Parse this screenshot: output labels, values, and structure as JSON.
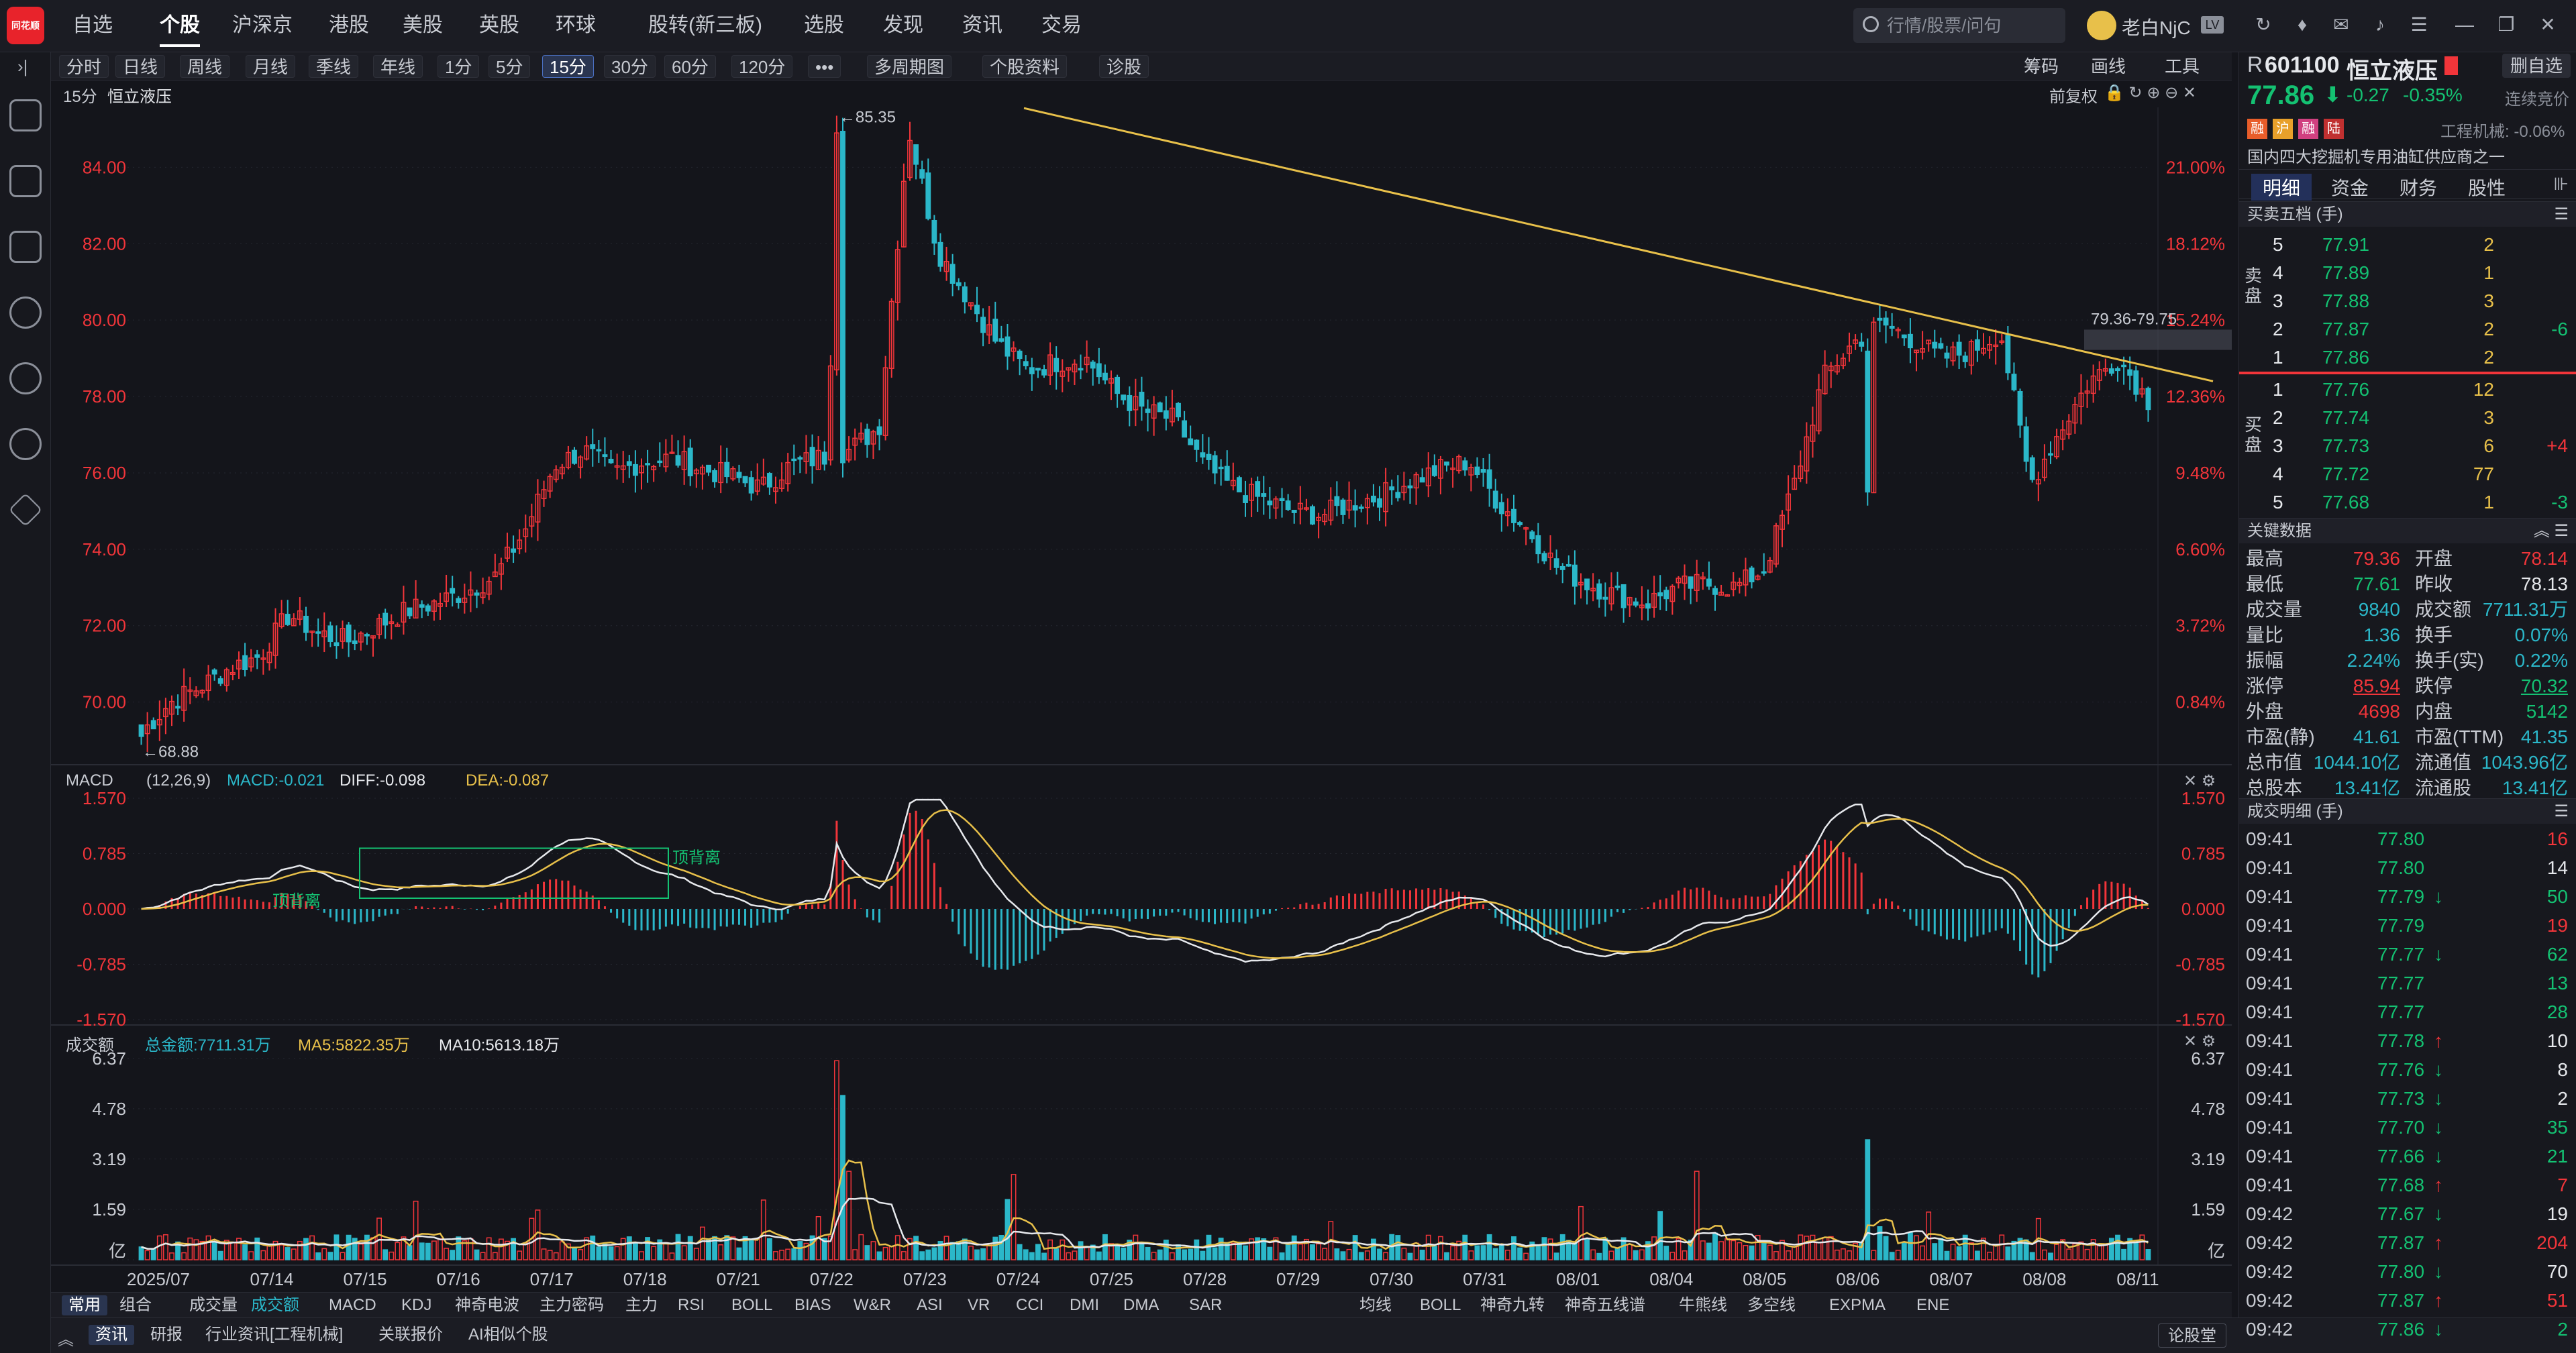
{
  "topbar": {
    "logo": "同花顺",
    "nav": [
      {
        "label": "自选"
      },
      {
        "label": "个股"
      },
      {
        "label": "沪深京"
      },
      {
        "label": "港股"
      },
      {
        "label": "美股"
      },
      {
        "label": "英股"
      },
      {
        "label": "环球"
      },
      {
        "label": "股转(新三板)"
      },
      {
        "label": "选股"
      },
      {
        "label": "发现"
      },
      {
        "label": "资讯"
      },
      {
        "label": "交易"
      }
    ],
    "search_placeholder": "行情/股票/问句",
    "user": "老白NjC"
  },
  "toolbar": {
    "periods": [
      {
        "label": "分时"
      },
      {
        "label": "日线"
      },
      {
        "label": "周线"
      },
      {
        "label": "月线"
      },
      {
        "label": "季线"
      },
      {
        "label": "年线"
      },
      {
        "label": "1分"
      },
      {
        "label": "5分"
      },
      {
        "label": "15分"
      },
      {
        "label": "30分"
      },
      {
        "label": "60分"
      },
      {
        "label": "120分"
      },
      {
        "label": "•••"
      },
      {
        "label": "多周期图"
      },
      {
        "label": "个股资料"
      },
      {
        "label": "诊股"
      }
    ],
    "right": [
      {
        "label": "筹码"
      },
      {
        "label": "画线"
      },
      {
        "label": "工具"
      }
    ]
  },
  "chart_header": {
    "period": "15分",
    "name": "恒立液压",
    "fq": "前复权"
  },
  "price_pane": {
    "y_ticks": [
      "84.00",
      "82.00",
      "80.00",
      "78.00",
      "76.00",
      "74.00",
      "72.00",
      "70.00"
    ],
    "pct_ticks": [
      "21.00%",
      "18.12%",
      "15.24%",
      "12.36%",
      "9.48%",
      "6.60%",
      "3.72%",
      "0.84%"
    ],
    "high_label": "←85.35",
    "low_label": "←68.88",
    "range_label": "79.36-79.75"
  },
  "macd_pane": {
    "title": "MACD",
    "params": "(12,26,9)",
    "macd": "MACD:-0.021",
    "diff": "DIFF:-0.098",
    "dea": "DEA:-0.087",
    "y_ticks": [
      "1.570",
      "0.785",
      "0.000",
      "-0.785",
      "-1.570"
    ],
    "annotations": [
      "顶背离",
      "顶背离"
    ]
  },
  "vol_pane": {
    "title": "成交额",
    "total": "总金额:7711.31万",
    "ma5": "MA5:5822.35万",
    "ma10": "MA10:5613.18万",
    "y_ticks": [
      "6.37",
      "4.78",
      "3.19",
      "1.59",
      "亿"
    ]
  },
  "x_axis": [
    "2025/07",
    "07/14",
    "07/15",
    "07/16",
    "07/17",
    "07/18",
    "07/21",
    "07/22",
    "07/23",
    "07/24",
    "07/25",
    "07/28",
    "07/29",
    "07/30",
    "07/31",
    "08/01",
    "08/04",
    "08/05",
    "08/06",
    "08/07",
    "08/08",
    "08/11"
  ],
  "bottom_tabs": {
    "left": [
      {
        "label": "常用"
      },
      {
        "label": "组合"
      },
      {
        "label": "成交量"
      },
      {
        "label": "成交额"
      },
      {
        "label": "MACD"
      },
      {
        "label": "KDJ"
      },
      {
        "label": "神奇电波"
      },
      {
        "label": "主力密码"
      },
      {
        "label": "主力"
      },
      {
        "label": "RSI"
      },
      {
        "label": "BOLL"
      },
      {
        "label": "BIAS"
      },
      {
        "label": "W&R"
      },
      {
        "label": "ASI"
      },
      {
        "label": "VR"
      },
      {
        "label": "CCI"
      },
      {
        "label": "DMI"
      },
      {
        "label": "DMA"
      },
      {
        "label": "SAR"
      }
    ],
    "right": [
      {
        "label": "均线"
      },
      {
        "label": "BOLL"
      },
      {
        "label": "神奇九转"
      },
      {
        "label": "神奇五线谱"
      },
      {
        "label": "牛熊线"
      },
      {
        "label": "多空线"
      },
      {
        "label": "EXPMA"
      },
      {
        "label": "ENE"
      }
    ]
  },
  "newsbar": [
    {
      "label": "资讯"
    },
    {
      "label": "研报"
    },
    {
      "label": "行业资讯[工程机械]"
    },
    {
      "label": "关联报价"
    },
    {
      "label": "AI相似个股"
    }
  ],
  "newsbar_right": "论股堂",
  "stock": {
    "prefix": "R",
    "code": "601100",
    "name": "恒立液压",
    "add_btn": "删自选",
    "price": "77.86",
    "change": "-0.27",
    "change_pct": "-0.35%",
    "status": "连续竞价",
    "tags": [
      "融",
      "沪",
      "融",
      "陆"
    ],
    "sector": "工程机械: -0.06%",
    "desc": "国内四大挖掘机专用油缸供应商之一",
    "tabs": [
      {
        "label": "明细"
      },
      {
        "label": "资金"
      },
      {
        "label": "财务"
      },
      {
        "label": "股性"
      }
    ]
  },
  "order_book": {
    "title": "买卖五档 (手)",
    "sell_label": "卖盘",
    "buy_label": "买盘",
    "sell": [
      {
        "lvl": "5",
        "price": "77.91",
        "vol": "2",
        "chg": ""
      },
      {
        "lvl": "4",
        "price": "77.89",
        "vol": "1",
        "chg": ""
      },
      {
        "lvl": "3",
        "price": "77.88",
        "vol": "3",
        "chg": ""
      },
      {
        "lvl": "2",
        "price": "77.87",
        "vol": "2",
        "chg": "-6"
      },
      {
        "lvl": "1",
        "price": "77.86",
        "vol": "2",
        "chg": ""
      }
    ],
    "buy": [
      {
        "lvl": "1",
        "price": "77.76",
        "vol": "12",
        "chg": ""
      },
      {
        "lvl": "2",
        "price": "77.74",
        "vol": "3",
        "chg": ""
      },
      {
        "lvl": "3",
        "price": "77.73",
        "vol": "6",
        "chg": "+4"
      },
      {
        "lvl": "4",
        "price": "77.72",
        "vol": "77",
        "chg": ""
      },
      {
        "lvl": "5",
        "price": "77.68",
        "vol": "1",
        "chg": "-3"
      }
    ]
  },
  "key_data": {
    "title": "关键数据",
    "rows": [
      {
        "l1": "最高",
        "v1": "79.36",
        "c1": "red",
        "l2": "开盘",
        "v2": "78.14",
        "c2": "red"
      },
      {
        "l1": "最低",
        "v1": "77.61",
        "c1": "green",
        "l2": "昨收",
        "v2": "78.13",
        "c2": "white"
      },
      {
        "l1": "成交量",
        "v1": "9840",
        "c1": "cyan",
        "l2": "成交额",
        "v2": "7711.31万",
        "c2": "cyan"
      },
      {
        "l1": "量比",
        "v1": "1.36",
        "c1": "cyan",
        "l2": "换手",
        "v2": "0.07%",
        "c2": "cyan"
      },
      {
        "l1": "振幅",
        "v1": "2.24%",
        "c1": "cyan",
        "l2": "换手(实)",
        "v2": "0.22%",
        "c2": "cyan"
      },
      {
        "l1": "涨停",
        "v1": "85.94",
        "c1": "red",
        "l2": "跌停",
        "v2": "70.32",
        "c2": "green"
      },
      {
        "l1": "外盘",
        "v1": "4698",
        "c1": "red",
        "l2": "内盘",
        "v2": "5142",
        "c2": "green"
      },
      {
        "l1": "市盈(静)",
        "v1": "41.61",
        "c1": "cyan",
        "l2": "市盈(TTM)",
        "v2": "41.35",
        "c2": "cyan"
      },
      {
        "l1": "总市值",
        "v1": "1044.10亿",
        "c1": "cyan",
        "l2": "流通值",
        "v2": "1043.96亿",
        "c2": "cyan"
      },
      {
        "l1": "总股本",
        "v1": "13.41亿",
        "c1": "cyan",
        "l2": "流通股",
        "v2": "13.41亿",
        "c2": "cyan"
      }
    ]
  },
  "trades": {
    "title": "成交明细 (手)",
    "rows": [
      {
        "t": "09:41",
        "p": "77.80",
        "d": "",
        "v": "16",
        "c": "red"
      },
      {
        "t": "09:41",
        "p": "77.80",
        "d": "",
        "v": "14",
        "c": "white"
      },
      {
        "t": "09:41",
        "p": "77.79",
        "d": "↓",
        "v": "50",
        "c": "green"
      },
      {
        "t": "09:41",
        "p": "77.79",
        "d": "",
        "v": "19",
        "c": "red"
      },
      {
        "t": "09:41",
        "p": "77.77",
        "d": "↓",
        "v": "62",
        "c": "green"
      },
      {
        "t": "09:41",
        "p": "77.77",
        "d": "",
        "v": "13",
        "c": "green"
      },
      {
        "t": "09:41",
        "p": "77.77",
        "d": "",
        "v": "28",
        "c": "green"
      },
      {
        "t": "09:41",
        "p": "77.78",
        "d": "↑",
        "v": "10",
        "c": "white"
      },
      {
        "t": "09:41",
        "p": "77.76",
        "d": "↓",
        "v": "8",
        "c": "white"
      },
      {
        "t": "09:41",
        "p": "77.73",
        "d": "↓",
        "v": "2",
        "c": "white"
      },
      {
        "t": "09:41",
        "p": "77.70",
        "d": "↓",
        "v": "35",
        "c": "green"
      },
      {
        "t": "09:41",
        "p": "77.66",
        "d": "↓",
        "v": "21",
        "c": "green"
      },
      {
        "t": "09:41",
        "p": "77.68",
        "d": "↑",
        "v": "7",
        "c": "red"
      },
      {
        "t": "09:42",
        "p": "77.67",
        "d": "↓",
        "v": "19",
        "c": "white"
      },
      {
        "t": "09:42",
        "p": "77.87",
        "d": "↑",
        "v": "204",
        "c": "red"
      },
      {
        "t": "09:42",
        "p": "77.80",
        "d": "↓",
        "v": "70",
        "c": "white"
      },
      {
        "t": "09:42",
        "p": "77.87",
        "d": "↑",
        "v": "51",
        "c": "red"
      },
      {
        "t": "09:42",
        "p": "77.86",
        "d": "↓",
        "v": "2",
        "c": "green"
      }
    ]
  },
  "chart_data": {
    "type": "candlestick",
    "title": "恒立液压 15分",
    "ylim": [
      68.5,
      85.5
    ],
    "x_labels": [
      "2025/07",
      "07/14",
      "07/15",
      "07/16",
      "07/17",
      "07/18",
      "07/21",
      "07/22",
      "07/23",
      "07/24",
      "07/25",
      "07/28",
      "07/29",
      "07/30",
      "07/31",
      "08/01",
      "08/04",
      "08/05",
      "08/06",
      "08/07",
      "08/08",
      "08/11"
    ],
    "close_path": [
      69.2,
      70.0,
      70.4,
      70.9,
      71.2,
      72.3,
      71.8,
      71.6,
      72.0,
      72.4,
      72.6,
      72.9,
      73.3,
      74.5,
      76.2,
      76.6,
      76.0,
      76.3,
      76.4,
      76.1,
      75.9,
      75.6,
      76.2,
      76.4,
      76.6,
      77.2,
      85.0,
      81.8,
      80.6,
      79.4,
      78.7,
      78.9,
      79.0,
      78.1,
      77.6,
      77.4,
      76.2,
      75.6,
      75.3,
      75.0,
      74.9,
      75.2,
      75.4,
      75.8,
      76.1,
      76.3,
      75.2,
      74.5,
      73.5,
      73.1,
      72.8,
      72.6,
      73.0,
      73.1,
      73.0,
      73.5,
      75.7,
      78.5,
      79.4,
      79.9,
      79.5,
      79.0,
      79.2,
      79.7,
      75.7,
      77.1,
      78.4,
      79.0,
      77.9
    ],
    "trendline": {
      "from": 85.35,
      "to": 78.4
    },
    "macd": {
      "ylim": [
        -1.57,
        1.57
      ]
    },
    "amount": {
      "ylim": [
        0,
        6.37
      ],
      "unit": "亿"
    }
  }
}
